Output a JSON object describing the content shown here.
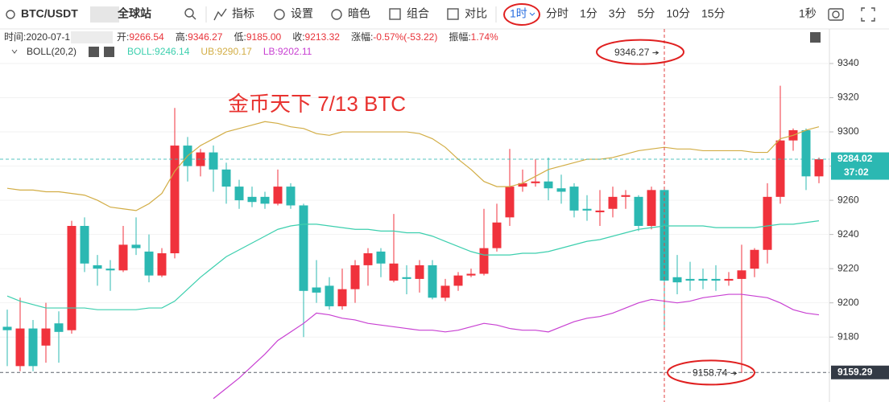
{
  "toolbar": {
    "symbol": "BTC/USDT",
    "exchange": "全球站",
    "buttons": [
      "指标",
      "设置",
      "暗色",
      "组合",
      "对比"
    ],
    "interval_selected": "1时",
    "intervals": [
      "分时",
      "1分",
      "3分",
      "5分",
      "10分",
      "15分"
    ],
    "seconds": "1秒"
  },
  "info": {
    "time": "时间:2020-07-1",
    "fields": [
      [
        "开:",
        "9266.54"
      ],
      [
        "高:",
        "9346.27"
      ],
      [
        "低:",
        "9185.00"
      ],
      [
        "收:",
        "9213.32"
      ],
      [
        "涨幅:",
        "-0.57%(-53.22)"
      ],
      [
        "振幅:",
        "1.74%"
      ]
    ],
    "indicator": "BOLL(20,2)"
  },
  "chart_data": {
    "type": "candlestick",
    "annotation": "金币天下 7/13  BTC",
    "up_color": "#f0323c",
    "down_color": "#2bb8b2",
    "open": [
      9186,
      9163,
      9185,
      9175,
      9188,
      9184,
      9245,
      9222,
      9220,
      9219,
      9234,
      9230,
      9216,
      9229,
      9292,
      9280,
      9288,
      9278,
      9268,
      9262,
      9262,
      9258,
      9268,
      9257,
      9209,
      9210,
      9198,
      9208,
      9222,
      9230,
      9213,
      9215,
      9214,
      9222,
      9203,
      9210,
      9216,
      9217,
      9232,
      9250,
      9268,
      9270,
      9271,
      9267,
      9268,
      9255,
      9253,
      9255,
      9262,
      9262,
      9245,
      9266,
      9215,
      9214,
      9214,
      9214,
      9213,
      9214,
      9220,
      9231,
      9262,
      9295,
      9301,
      9274
    ],
    "high": [
      9196,
      9203,
      9190,
      9200,
      9195,
      9248,
      9250,
      9228,
      9225,
      9245,
      9250,
      9240,
      9232,
      9314,
      9297,
      9290,
      9292,
      9282,
      9272,
      9268,
      9265,
      9278,
      9270,
      9258,
      9225,
      9215,
      9220,
      9225,
      9232,
      9232,
      9252,
      9222,
      9225,
      9225,
      9214,
      9218,
      9220,
      9255,
      9258,
      9290,
      9278,
      9284,
      9285,
      9275,
      9270,
      9263,
      9266,
      9268,
      9266,
      9263,
      9268,
      9268,
      9228,
      9224,
      9220,
      9222,
      9218,
      9234,
      9232,
      9270,
      9327,
      9302,
      9302,
      9285
    ],
    "low": [
      9163,
      9160,
      9160,
      9165,
      9165,
      9182,
      9218,
      9210,
      9207,
      9218,
      9228,
      9212,
      9215,
      9226,
      9271,
      9274,
      9265,
      9258,
      9255,
      9256,
      9255,
      9257,
      9255,
      9180,
      9200,
      9196,
      9196,
      9200,
      9210,
      9215,
      9212,
      9205,
      9206,
      9202,
      9201,
      9207,
      9215,
      9216,
      9230,
      9245,
      9265,
      9268,
      9260,
      9258,
      9250,
      9248,
      9245,
      9250,
      9255,
      9242,
      9243,
      9185,
      9205,
      9207,
      9208,
      9207,
      9210,
      9159,
      9215,
      9223,
      9258,
      9289,
      9266,
      9270
    ],
    "close": [
      9184,
      9185,
      9163,
      9185,
      9183,
      9245,
      9223,
      9220,
      9219,
      9234,
      9232,
      9216,
      9229,
      9292,
      9280,
      9288,
      9278,
      9268,
      9260,
      9259,
      9258,
      9268,
      9257,
      9207,
      9206,
      9198,
      9208,
      9222,
      9229,
      9223,
      9223,
      9214,
      9222,
      9203,
      9210,
      9216,
      9217,
      9232,
      9247,
      9268,
      9270,
      9271,
      9267,
      9265,
      9254,
      9254,
      9254,
      9262,
      9263,
      9245,
      9266,
      9213,
      9212,
      9213,
      9213,
      9213,
      9214,
      9219,
      9231,
      9262,
      9295,
      9301,
      9274,
      9284
    ],
    "series": [
      {
        "name": "BOLL:",
        "last_label": "9246.14",
        "color": "#3ccfae",
        "values": [
          9204,
          9201,
          9199,
          9197,
          9197,
          9197,
          9197,
          9196,
          9196,
          9196,
          9196,
          9197,
          9197,
          9201,
          9208,
          9215,
          9221,
          9227,
          9231,
          9235,
          9239,
          9243,
          9245,
          9246,
          9246,
          9245,
          9244,
          9243,
          9243,
          9242,
          9242,
          9241,
          9241,
          9239,
          9236,
          9233,
          9230,
          9228,
          9228,
          9228,
          9229,
          9229,
          9230,
          9232,
          9234,
          9236,
          9237,
          9239,
          9241,
          9243,
          9244,
          9245,
          9245,
          9245,
          9245,
          9244,
          9244,
          9244,
          9244,
          9245,
          9246,
          9246,
          9247,
          9248
        ]
      },
      {
        "name": "UB:",
        "last_label": "9290.17",
        "color": "#d2ad45",
        "values": [
          9267,
          9266,
          9266,
          9265,
          9265,
          9264,
          9263,
          9260,
          9256,
          9255,
          9254,
          9258,
          9264,
          9277,
          9286,
          9292,
          9296,
          9300,
          9302,
          9304,
          9306,
          9305,
          9303,
          9302,
          9299,
          9298,
          9300,
          9300,
          9300,
          9300,
          9300,
          9300,
          9299,
          9296,
          9291,
          9284,
          9278,
          9271,
          9268,
          9268,
          9270,
          9274,
          9278,
          9280,
          9282,
          9284,
          9284,
          9285,
          9287,
          9289,
          9290,
          9291,
          9290,
          9290,
          9289,
          9289,
          9289,
          9289,
          9288,
          9288,
          9296,
          9298,
          9301,
          9303
        ]
      },
      {
        "name": "LB:",
        "last_label": "9202.11",
        "color": "#c840d2",
        "values": [
          null,
          null,
          null,
          null,
          null,
          null,
          null,
          null,
          null,
          null,
          null,
          null,
          null,
          null,
          null,
          null,
          9144,
          9150,
          9156,
          9163,
          9170,
          9178,
          9183,
          9188,
          9194,
          9193,
          9191,
          9190,
          9188,
          9187,
          9186,
          9185,
          9184,
          9184,
          9183,
          9184,
          9186,
          9188,
          9187,
          9185,
          9184,
          9184,
          9183,
          9186,
          9189,
          9191,
          9192,
          9194,
          9197,
          9200,
          9202,
          9201,
          9200,
          9201,
          9203,
          9204,
          9205,
          9205,
          9204,
          9203,
          9200,
          9196,
          9194,
          9193
        ]
      }
    ],
    "ylim": [
      9142,
      9359
    ],
    "yticks": [
      9180,
      9200,
      9220,
      9240,
      9260,
      9280,
      9300,
      9320,
      9340
    ],
    "price_lines": [
      {
        "value": 9284.02,
        "countdown": "37:02",
        "color": "#2bb8b2"
      },
      {
        "value": 9159.29,
        "color": "#333a45"
      }
    ],
    "high_marker": 9346.27,
    "low_marker": 9158.74
  }
}
